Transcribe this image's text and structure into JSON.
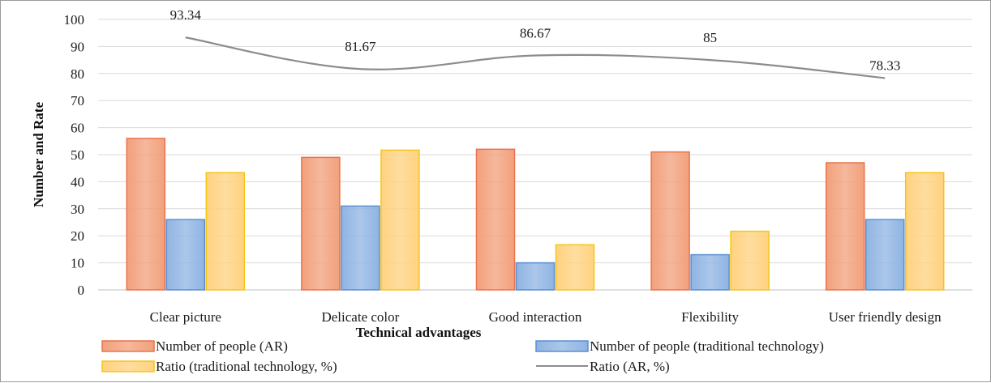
{
  "chart_data": {
    "type": "bar",
    "title": "",
    "xlabel": "Technical advantages",
    "ylabel": "Number and Rate",
    "ylim": [
      0,
      100
    ],
    "yticks": [
      0,
      10,
      20,
      30,
      40,
      50,
      60,
      70,
      80,
      90,
      100
    ],
    "grid": true,
    "legend_position": "bottom",
    "categories": [
      "Clear picture",
      "Delicate color",
      "Good interaction",
      "Flexibility",
      "User friendly design"
    ],
    "series": [
      {
        "name": "Number of people (AR)",
        "type": "bar",
        "values": [
          56,
          49,
          52,
          51,
          47
        ],
        "color": "#f2a07b"
      },
      {
        "name": "Number of people (traditional technology)",
        "type": "bar",
        "values": [
          26,
          31,
          10,
          13,
          26
        ],
        "color": "#8fb4e3"
      },
      {
        "name": "Ratio (traditional technology, %)",
        "type": "bar",
        "values": [
          43.33,
          51.67,
          16.67,
          21.67,
          43.33
        ],
        "color": "#ffd27f"
      },
      {
        "name": "Ratio (AR, %)",
        "type": "line",
        "values": [
          93.34,
          81.67,
          86.67,
          85,
          78.33
        ],
        "color": "#8c8c8c",
        "data_labels": [
          "93.34",
          "81.67",
          "86.67",
          "85",
          "78.33"
        ]
      }
    ]
  },
  "colors": {
    "ar_bar_stroke": "#e8744f",
    "trad_bar_stroke": "#5b8fd1",
    "ratio_trad_stroke": "#f5c518",
    "grid": "#d9d9d9"
  }
}
